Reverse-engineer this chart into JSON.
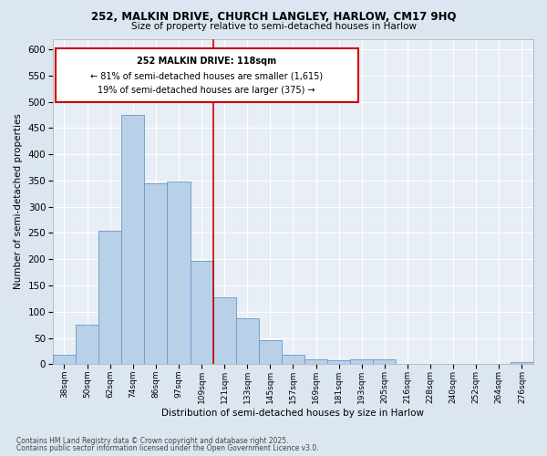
{
  "title_line1": "252, MALKIN DRIVE, CHURCH LANGLEY, HARLOW, CM17 9HQ",
  "title_line2": "Size of property relative to semi-detached houses in Harlow",
  "xlabel": "Distribution of semi-detached houses by size in Harlow",
  "ylabel": "Number of semi-detached properties",
  "footer_line1": "Contains HM Land Registry data © Crown copyright and database right 2025.",
  "footer_line2": "Contains public sector information licensed under the Open Government Licence v3.0.",
  "annotation_line1": "252 MALKIN DRIVE: 118sqm",
  "annotation_line2": "← 81% of semi-detached houses are smaller (1,615)",
  "annotation_line3": "19% of semi-detached houses are larger (375) →",
  "bar_labels": [
    "38sqm",
    "50sqm",
    "62sqm",
    "74sqm",
    "86sqm",
    "97sqm",
    "109sqm",
    "121sqm",
    "133sqm",
    "145sqm",
    "157sqm",
    "169sqm",
    "181sqm",
    "193sqm",
    "205sqm",
    "216sqm",
    "228sqm",
    "240sqm",
    "252sqm",
    "264sqm",
    "276sqm"
  ],
  "bar_values": [
    18,
    75,
    255,
    475,
    345,
    348,
    197,
    127,
    88,
    46,
    18,
    10,
    8,
    9,
    9,
    0,
    0,
    0,
    0,
    0,
    4
  ],
  "bar_color": "#b8d0e8",
  "bar_edge_color": "#6699cc",
  "vline_color": "#cc0000",
  "ylim": [
    0,
    620
  ],
  "yticks": [
    0,
    50,
    100,
    150,
    200,
    250,
    300,
    350,
    400,
    450,
    500,
    550,
    600
  ],
  "bg_color": "#dce6f0",
  "plot_bg_color": "#e8eef5",
  "annotation_box_color": "#cc0000",
  "grid_color": "#ffffff"
}
